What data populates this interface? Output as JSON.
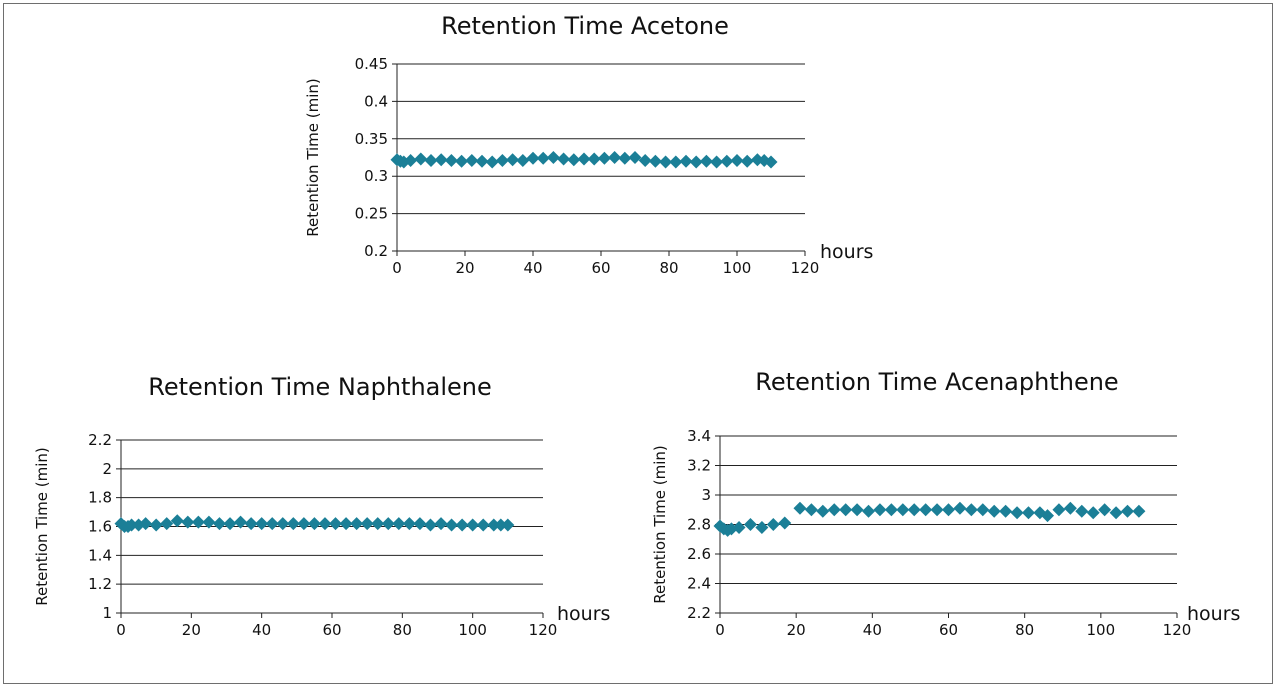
{
  "colors": {
    "marker": "#1b7f97",
    "grid": "#222222"
  },
  "chart_data": [
    {
      "type": "scatter",
      "title": "Retention Time Acetone",
      "xlabel": "hours",
      "ylabel": "Retention Time (min)",
      "xlim": [
        0,
        120
      ],
      "ylim": [
        0.2,
        0.45
      ],
      "xticks": [
        "0",
        "20",
        "40",
        "60",
        "80",
        "100",
        "120"
      ],
      "yticks": [
        "0.2",
        "0.25",
        "0.3",
        "0.35",
        "0.4",
        "0.45"
      ],
      "grid": "horizontal",
      "series": [
        {
          "marker": "diamond",
          "x": [
            0,
            1,
            2,
            4,
            7,
            10,
            13,
            16,
            19,
            22,
            25,
            28,
            31,
            34,
            37,
            40,
            43,
            46,
            49,
            52,
            55,
            58,
            61,
            64,
            67,
            70,
            73,
            76,
            79,
            82,
            85,
            88,
            91,
            94,
            97,
            100,
            103,
            106,
            108,
            110
          ],
          "y": [
            0.322,
            0.32,
            0.319,
            0.321,
            0.323,
            0.321,
            0.322,
            0.321,
            0.32,
            0.321,
            0.32,
            0.319,
            0.321,
            0.322,
            0.321,
            0.324,
            0.324,
            0.325,
            0.323,
            0.322,
            0.323,
            0.323,
            0.324,
            0.325,
            0.324,
            0.325,
            0.321,
            0.32,
            0.319,
            0.319,
            0.32,
            0.319,
            0.32,
            0.319,
            0.32,
            0.321,
            0.32,
            0.322,
            0.321,
            0.319
          ]
        }
      ]
    },
    {
      "type": "scatter",
      "title": "Retention Time Naphthalene",
      "xlabel": "hours",
      "ylabel": "Retention Time (min)",
      "xlim": [
        0,
        120
      ],
      "ylim": [
        1,
        2.2
      ],
      "xticks": [
        "0",
        "20",
        "40",
        "60",
        "80",
        "100",
        "120"
      ],
      "yticks": [
        "1",
        "1.2",
        "1.4",
        "1.6",
        "1.8",
        "2",
        "2.2"
      ],
      "grid": "horizontal",
      "series": [
        {
          "marker": "diamond",
          "x": [
            0,
            1,
            2,
            3,
            5,
            7,
            10,
            13,
            16,
            19,
            22,
            25,
            28,
            31,
            34,
            37,
            40,
            43,
            46,
            49,
            52,
            55,
            58,
            61,
            64,
            67,
            70,
            73,
            76,
            79,
            82,
            85,
            88,
            91,
            94,
            97,
            100,
            103,
            106,
            108,
            110
          ],
          "y": [
            1.62,
            1.6,
            1.6,
            1.61,
            1.61,
            1.62,
            1.61,
            1.62,
            1.64,
            1.63,
            1.63,
            1.63,
            1.62,
            1.62,
            1.63,
            1.62,
            1.62,
            1.62,
            1.62,
            1.62,
            1.62,
            1.62,
            1.62,
            1.62,
            1.62,
            1.62,
            1.62,
            1.62,
            1.62,
            1.62,
            1.62,
            1.62,
            1.61,
            1.62,
            1.61,
            1.61,
            1.61,
            1.61,
            1.61,
            1.61,
            1.61
          ]
        }
      ]
    },
    {
      "type": "scatter",
      "title": "Retention Time Acenaphthene",
      "xlabel": "hours",
      "ylabel": "Retention Time (min)",
      "xlim": [
        0,
        120
      ],
      "ylim": [
        2.2,
        3.4
      ],
      "xticks": [
        "0",
        "20",
        "40",
        "60",
        "80",
        "100",
        "120"
      ],
      "yticks": [
        "2.2",
        "2.4",
        "2.6",
        "2.8",
        "3",
        "3.2",
        "3.4"
      ],
      "grid": "horizontal",
      "series": [
        {
          "marker": "diamond",
          "x": [
            0,
            1,
            2,
            3,
            5,
            8,
            11,
            14,
            17,
            21,
            24,
            27,
            30,
            33,
            36,
            39,
            42,
            45,
            48,
            51,
            54,
            57,
            60,
            63,
            66,
            69,
            72,
            75,
            78,
            81,
            84,
            86,
            89,
            92,
            95,
            98,
            101,
            104,
            107,
            110
          ],
          "y": [
            2.79,
            2.77,
            2.76,
            2.77,
            2.78,
            2.8,
            2.78,
            2.8,
            2.81,
            2.91,
            2.9,
            2.89,
            2.9,
            2.9,
            2.9,
            2.89,
            2.9,
            2.9,
            2.9,
            2.9,
            2.9,
            2.9,
            2.9,
            2.91,
            2.9,
            2.9,
            2.89,
            2.89,
            2.88,
            2.88,
            2.88,
            2.86,
            2.9,
            2.91,
            2.89,
            2.88,
            2.9,
            2.88,
            2.89,
            2.89
          ]
        }
      ]
    }
  ]
}
